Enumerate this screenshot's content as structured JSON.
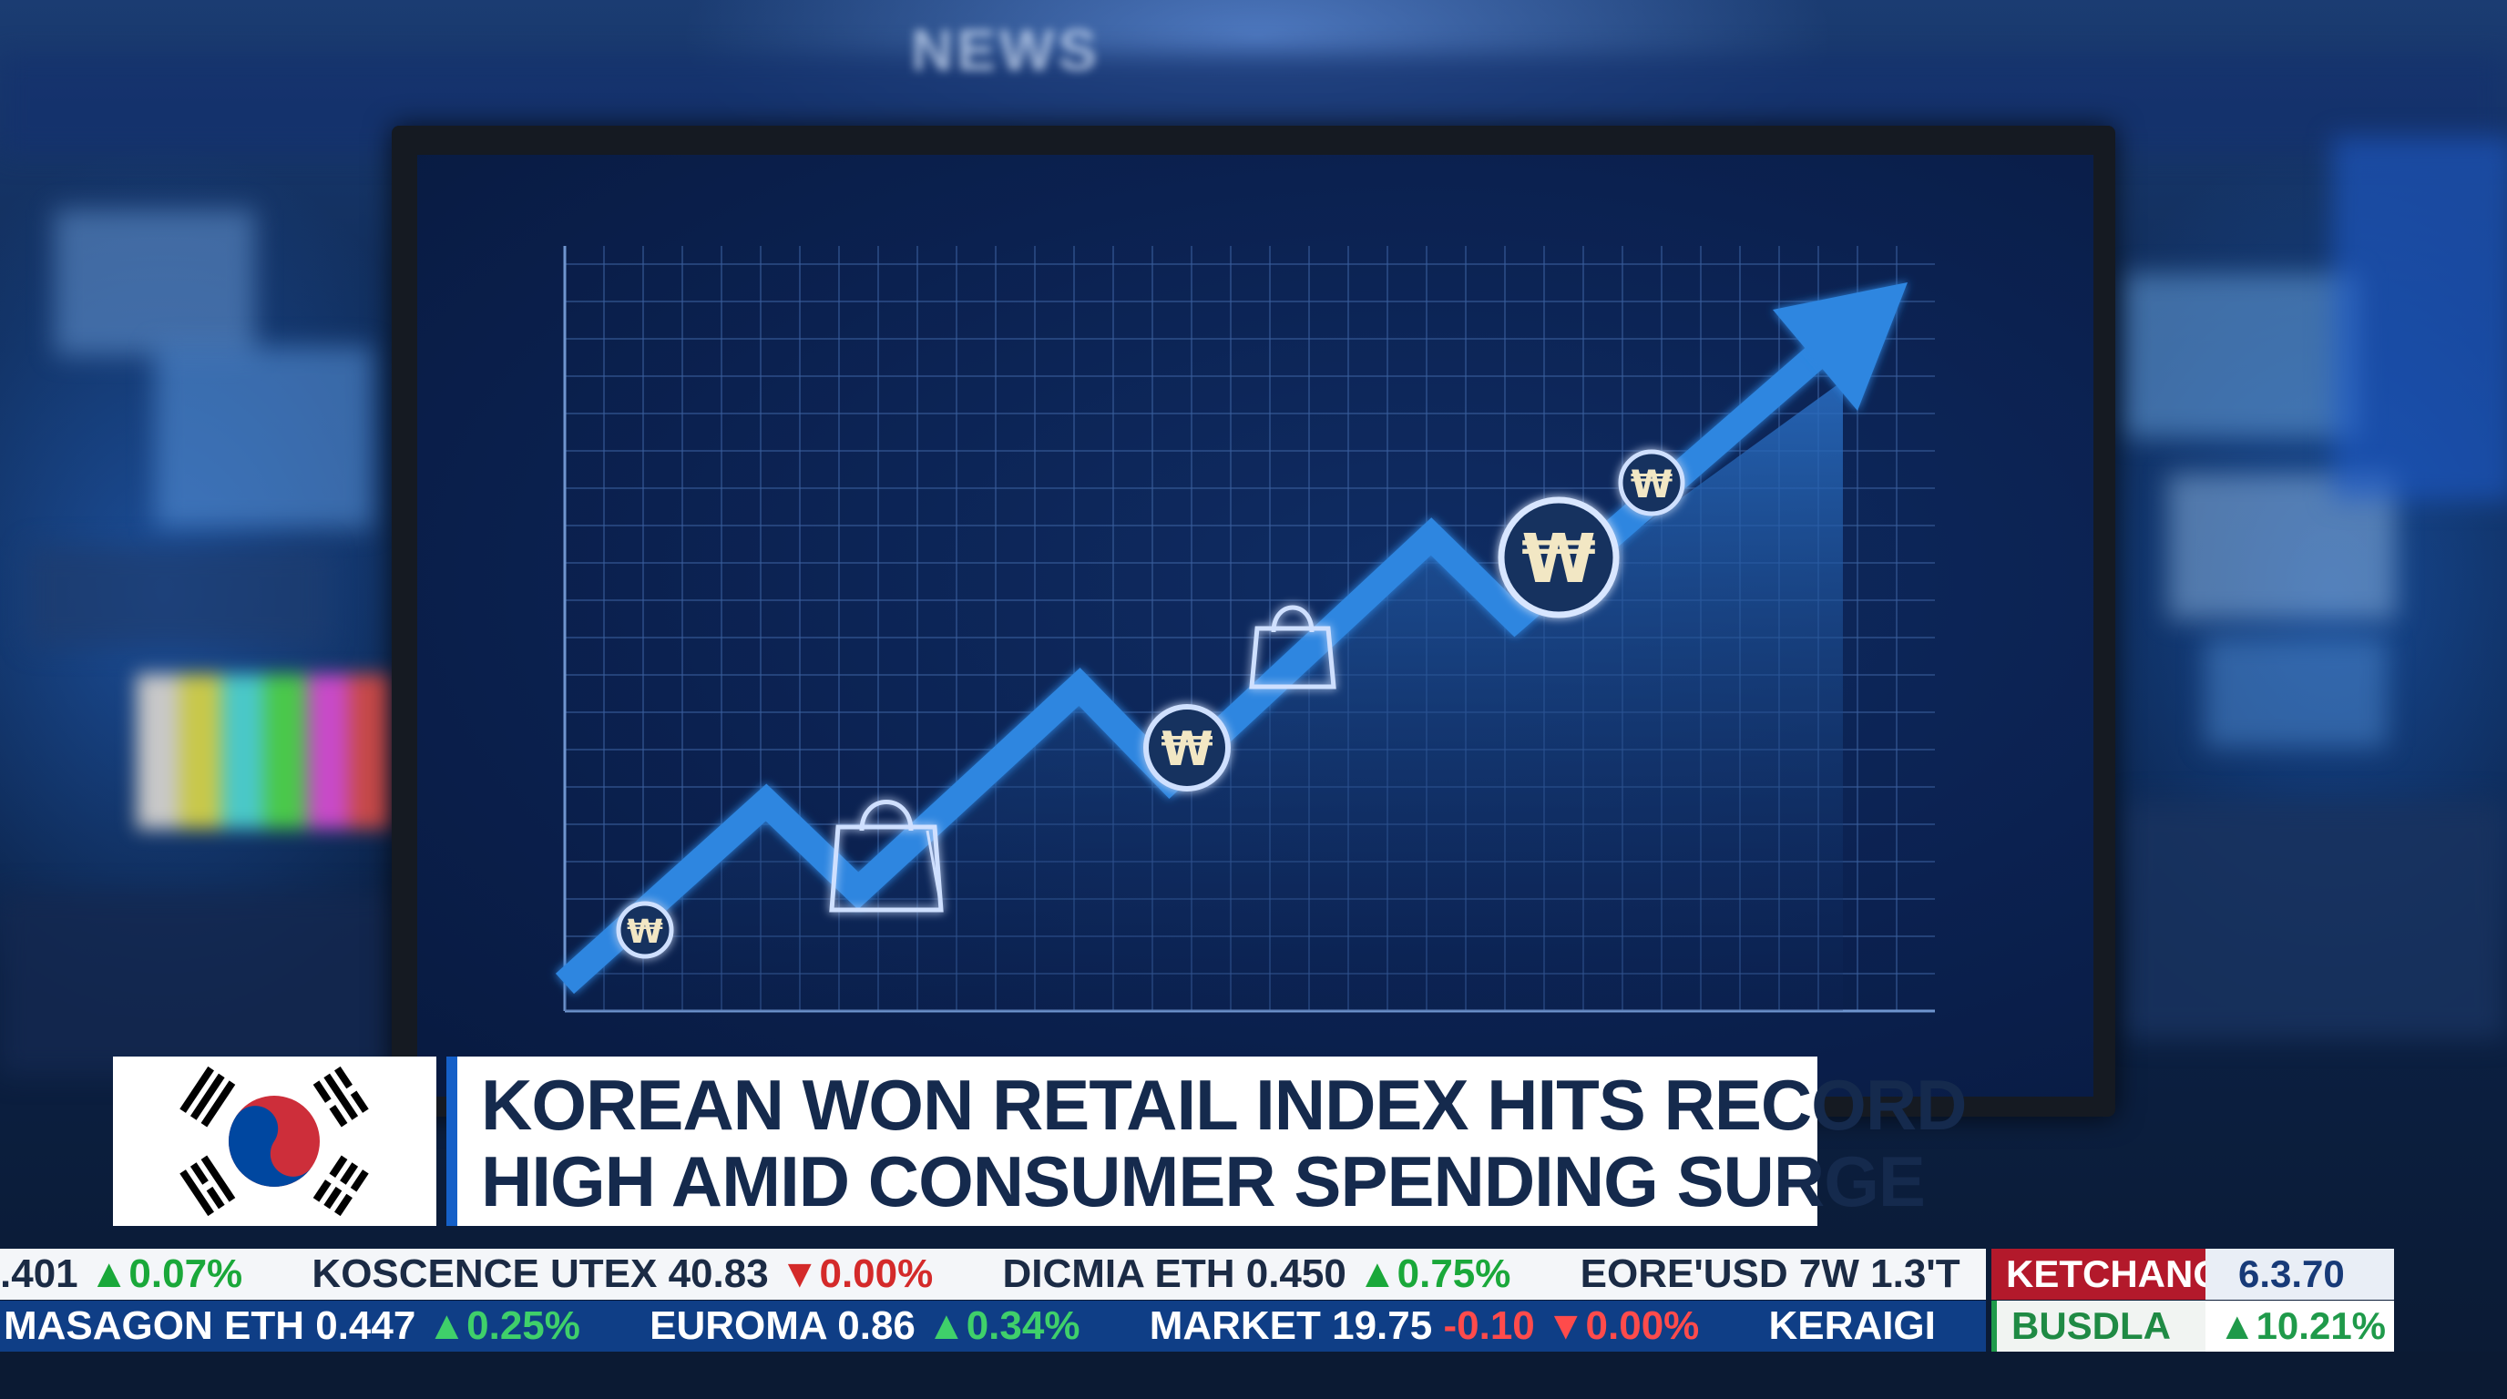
{
  "background": {
    "studio_sign": "NEWS"
  },
  "monitor": {
    "chart": {
      "type": "line",
      "trend": "rising",
      "icons": [
        "won-coin-icon",
        "shopping-bag-icon",
        "won-coin-icon",
        "shopping-bag-icon",
        "won-coin-icon",
        "won-coin-icon"
      ],
      "won_symbol": "₩",
      "line_color": "#2f86e0",
      "fill_color": "#1d5fb4"
    }
  },
  "lower_third": {
    "flag": "south-korea-flag",
    "headline_line1": "KOREAN WON RETAIL INDEX HITS RECORD",
    "headline_line2": "HIGH AMID CONSUMER SPENDING SURGE"
  },
  "ticker": {
    "top": [
      {
        "name": ".401",
        "change": "▲0.07%",
        "dir": "up"
      },
      {
        "name": "KOSCENCE UTEX 40.83",
        "change": "▼0.00%",
        "dir": "down"
      },
      {
        "name": "DICMIA ETH 0.450",
        "change": "▲0.75%",
        "dir": "up"
      },
      {
        "name": "EORE'USD 7W 1.3'T",
        "change": "",
        "dir": ""
      }
    ],
    "bottom": [
      {
        "name": "MASAGON ETH 0.447",
        "change": "▲0.25%",
        "dir": "up"
      },
      {
        "name": "EUROMA 0.86",
        "change": "▲0.34%",
        "dir": "up"
      },
      {
        "name": "MARKET 19.75",
        "change": "-0.10 ▼0.00%",
        "dir": "down"
      },
      {
        "name": "KERAIGI",
        "change": "",
        "dir": ""
      }
    ],
    "side": {
      "top_label": "KETCHANGE",
      "top_value": "6.3.70",
      "bottom_label": "BUSDLA",
      "bottom_value": "▲10.21%"
    }
  }
}
